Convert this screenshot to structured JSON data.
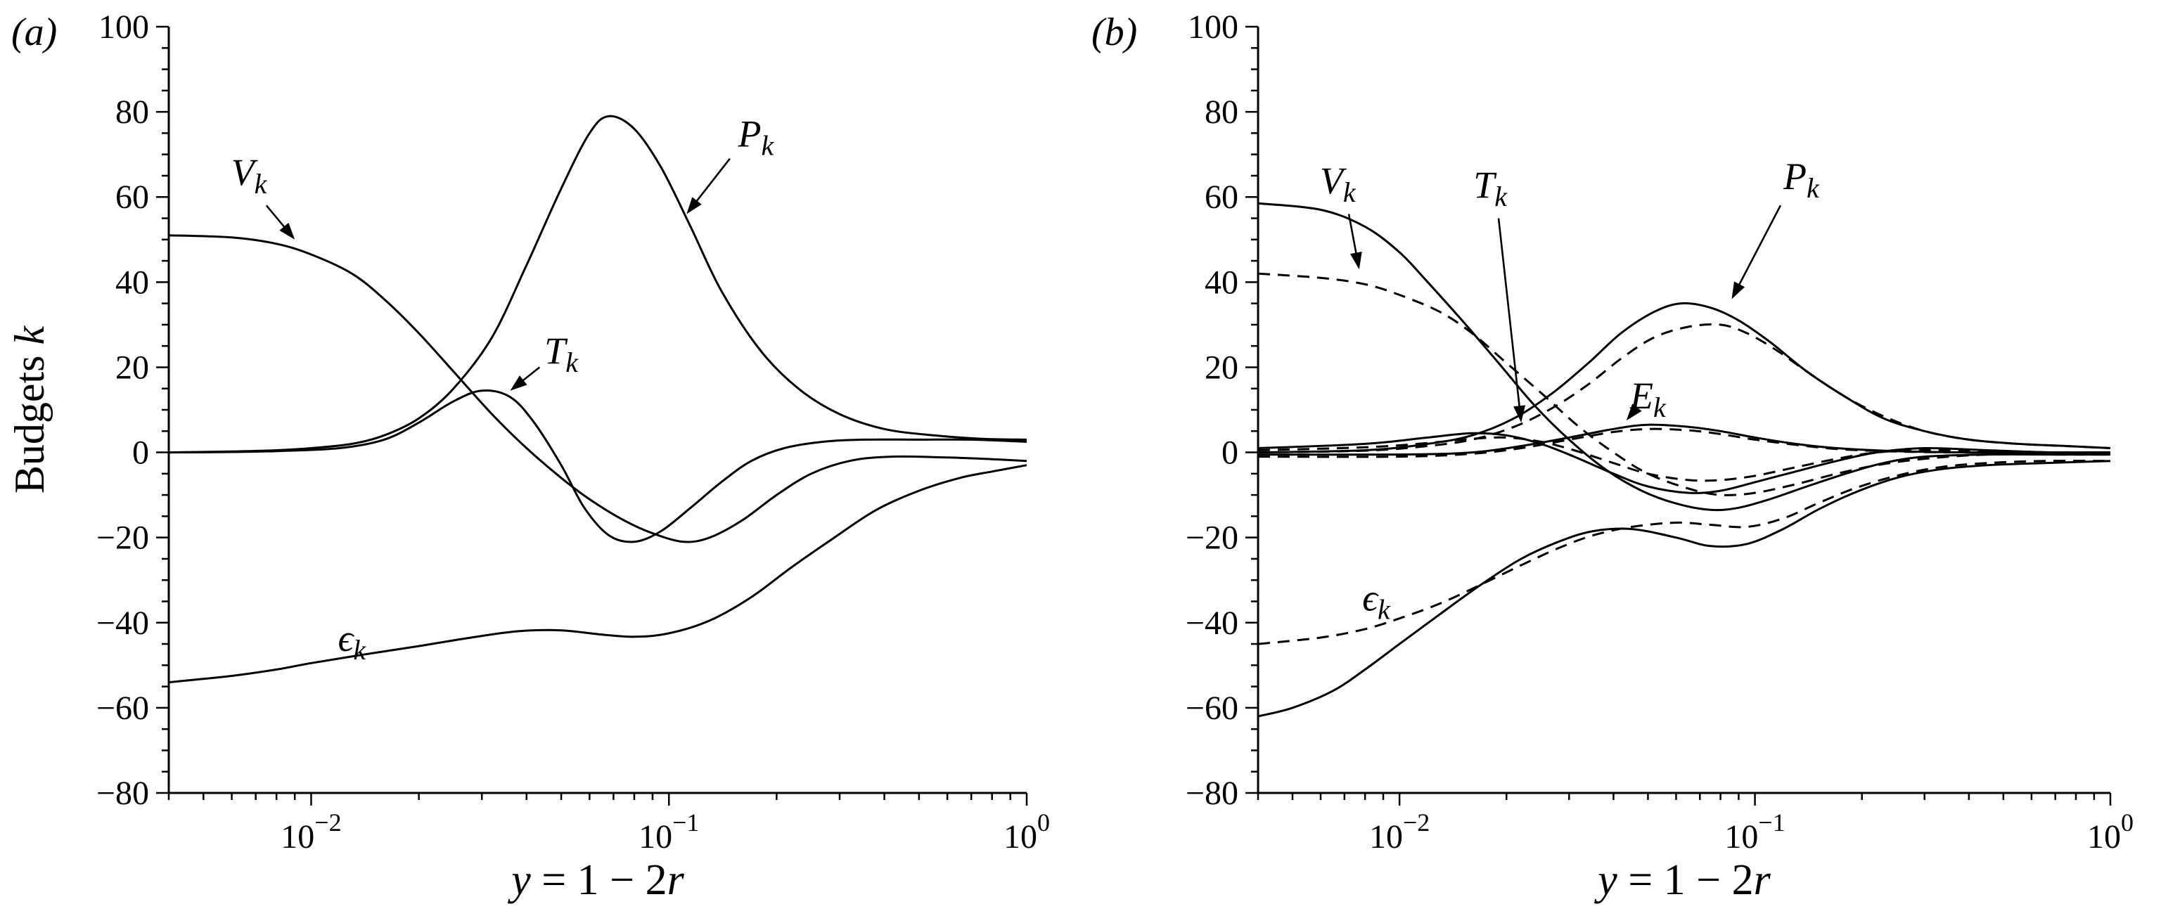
{
  "chart_data": [
    {
      "type": "line",
      "panel_tag": "(a)",
      "xscale": "log",
      "xlim": [
        0.004,
        1
      ],
      "ylim": [
        -80,
        100
      ],
      "grid": false,
      "legend": "none",
      "xlabel": "y = 1 − 2r",
      "ylabel": "Budgets k",
      "xlabel_segments": [
        {
          "t": "y",
          "i": 1
        },
        {
          "t": " = 1 − 2",
          "i": 0
        },
        {
          "t": "r",
          "i": 1
        }
      ],
      "ylabel_segments": [
        {
          "t": "Budgets ",
          "i": 0
        },
        {
          "t": "k",
          "i": 1
        }
      ],
      "x_ticks": [
        {
          "value": 0.01,
          "mantissa": "10",
          "exp": "−2"
        },
        {
          "value": 0.1,
          "mantissa": "10",
          "exp": "−1"
        },
        {
          "value": 1,
          "mantissa": "10",
          "exp": "0"
        }
      ],
      "y_tick_major_step": 20,
      "y_tick_minor_step": 5,
      "series": [
        {
          "name": "Pk",
          "style": "solid",
          "x": [
            0.004,
            0.006,
            0.008,
            0.01,
            0.013,
            0.016,
            0.02,
            0.025,
            0.032,
            0.04,
            0.05,
            0.06,
            0.068,
            0.08,
            0.095,
            0.115,
            0.14,
            0.18,
            0.23,
            0.3,
            0.4,
            0.55,
            0.75,
            1.0
          ],
          "y": [
            0,
            0.2,
            0.5,
            1,
            2,
            4,
            8,
            15,
            27,
            44,
            62,
            75,
            79,
            76,
            67,
            53,
            38,
            24,
            15,
            9,
            5.5,
            4,
            3.2,
            3
          ]
        },
        {
          "name": "Vk",
          "style": "solid",
          "x": [
            0.004,
            0.006,
            0.008,
            0.01,
            0.013,
            0.016,
            0.02,
            0.025,
            0.032,
            0.04,
            0.05,
            0.06,
            0.075,
            0.09,
            0.11,
            0.13,
            0.16,
            0.2,
            0.25,
            0.32,
            0.42,
            0.6,
            0.8,
            1.0
          ],
          "y": [
            51,
            50.5,
            49,
            46.5,
            42,
            36,
            28,
            19,
            9,
            1,
            -6,
            -11,
            -16,
            -19,
            -21,
            -20,
            -16,
            -10,
            -5,
            -2,
            -1,
            -1.2,
            -1.6,
            -2
          ]
        },
        {
          "name": "Tk",
          "style": "solid",
          "x": [
            0.004,
            0.006,
            0.008,
            0.012,
            0.016,
            0.02,
            0.025,
            0.03,
            0.036,
            0.042,
            0.05,
            0.058,
            0.068,
            0.08,
            0.095,
            0.115,
            0.14,
            0.17,
            0.21,
            0.27,
            0.35,
            0.5,
            0.7,
            1.0
          ],
          "y": [
            0,
            0.1,
            0.3,
            1,
            3,
            7,
            12,
            14.5,
            13,
            7,
            -3,
            -13,
            -19.5,
            -21,
            -18.5,
            -13,
            -7,
            -2,
            1,
            2.5,
            3,
            3,
            3,
            2.5
          ]
        },
        {
          "name": "eps_k",
          "style": "solid",
          "x": [
            0.004,
            0.006,
            0.008,
            0.01,
            0.014,
            0.02,
            0.028,
            0.038,
            0.05,
            0.065,
            0.08,
            0.1,
            0.13,
            0.17,
            0.22,
            0.29,
            0.38,
            0.5,
            0.65,
            0.8,
            1.0
          ],
          "y": [
            -54,
            -52.5,
            -51,
            -49.5,
            -47.5,
            -45.5,
            -43.5,
            -42,
            -41.8,
            -42.8,
            -43.3,
            -42.5,
            -39.5,
            -34,
            -27,
            -20,
            -13.5,
            -9,
            -6,
            -4.5,
            -3
          ]
        }
      ],
      "annotations": [
        {
          "main": "V",
          "sub": "k",
          "x": 0.0067,
          "y": 66,
          "arrow": {
            "x1": 0.0075,
            "y1": 58,
            "x2": 0.009,
            "y2": 50
          }
        },
        {
          "main": "P",
          "sub": "k",
          "x": 0.175,
          "y": 75,
          "arrow": {
            "x1": 0.148,
            "y1": 69,
            "x2": 0.112,
            "y2": 56
          }
        },
        {
          "main": "T",
          "sub": "k",
          "x": 0.05,
          "y": 24,
          "arrow": {
            "x1": 0.0435,
            "y1": 20,
            "x2": 0.036,
            "y2": 14.5
          }
        },
        {
          "main": "ϵ",
          "sub": "k",
          "x": 0.013,
          "y": -43.5
        }
      ]
    },
    {
      "type": "line",
      "panel_tag": "(b)",
      "xscale": "log",
      "xlim": [
        0.004,
        1
      ],
      "ylim": [
        -80,
        100
      ],
      "grid": false,
      "legend": "none",
      "xlabel": "y = 1 − 2r",
      "ylabel": "",
      "xlabel_segments": [
        {
          "t": "y",
          "i": 1
        },
        {
          "t": " = 1 − 2",
          "i": 0
        },
        {
          "t": "r",
          "i": 1
        }
      ],
      "x_ticks": [
        {
          "value": 0.01,
          "mantissa": "10",
          "exp": "−2"
        },
        {
          "value": 0.1,
          "mantissa": "10",
          "exp": "−1"
        },
        {
          "value": 1,
          "mantissa": "10",
          "exp": "0"
        }
      ],
      "y_tick_major_step": 20,
      "y_tick_minor_step": 5,
      "series": [
        {
          "name": "Pk_solid",
          "style": "solid",
          "x": [
            0.004,
            0.008,
            0.012,
            0.016,
            0.021,
            0.027,
            0.034,
            0.042,
            0.052,
            0.062,
            0.075,
            0.09,
            0.11,
            0.14,
            0.18,
            0.23,
            0.3,
            0.4,
            0.55,
            0.75,
            1.0
          ],
          "y": [
            0,
            0.5,
            2,
            4,
            8,
            14,
            21,
            28,
            33,
            35,
            34,
            31,
            26,
            19,
            13,
            8,
            5,
            3,
            2,
            1.5,
            1
          ]
        },
        {
          "name": "Pk_dashed",
          "style": "dashed",
          "x": [
            0.004,
            0.008,
            0.012,
            0.016,
            0.021,
            0.027,
            0.034,
            0.042,
            0.052,
            0.065,
            0.08,
            0.095,
            0.115,
            0.14,
            0.18,
            0.23,
            0.3,
            0.4,
            0.55,
            0.75,
            1.0
          ],
          "y": [
            0,
            0.4,
            1.5,
            3,
            6,
            10.5,
            16,
            22,
            27,
            29.5,
            30,
            28,
            24,
            19,
            13,
            8.5,
            5,
            3,
            2,
            1.5,
            1
          ]
        },
        {
          "name": "Vk_solid",
          "style": "solid",
          "x": [
            0.004,
            0.006,
            0.008,
            0.01,
            0.012,
            0.015,
            0.019,
            0.024,
            0.03,
            0.038,
            0.048,
            0.06,
            0.075,
            0.09,
            0.11,
            0.14,
            0.18,
            0.23,
            0.3,
            0.45,
            0.7,
            1.0
          ],
          "y": [
            58.5,
            57,
            53,
            47,
            40,
            31,
            21,
            11,
            3,
            -4,
            -9,
            -12,
            -13.5,
            -13,
            -11,
            -8,
            -5,
            -2.5,
            -1,
            -0.5,
            -0.5,
            -0.5
          ]
        },
        {
          "name": "Vk_dashed",
          "style": "dashed",
          "x": [
            0.004,
            0.006,
            0.008,
            0.01,
            0.013,
            0.016,
            0.02,
            0.025,
            0.032,
            0.04,
            0.05,
            0.065,
            0.08,
            0.1,
            0.13,
            0.17,
            0.22,
            0.3,
            0.45,
            0.7,
            1.0
          ],
          "y": [
            42,
            41,
            39.5,
            37,
            33,
            28,
            21,
            14,
            6,
            0,
            -5,
            -8.5,
            -10,
            -9.5,
            -7.5,
            -5,
            -3,
            -1.5,
            -0.5,
            -0.5,
            -0.5
          ]
        },
        {
          "name": "Tk_solid",
          "style": "solid",
          "x": [
            0.004,
            0.008,
            0.012,
            0.016,
            0.02,
            0.025,
            0.031,
            0.04,
            0.05,
            0.065,
            0.08,
            0.1,
            0.13,
            0.17,
            0.22,
            0.3,
            0.45,
            0.7,
            1.0
          ],
          "y": [
            1,
            2,
            3.5,
            4.5,
            4,
            2,
            -1,
            -5,
            -8,
            -9.5,
            -9,
            -7,
            -4.5,
            -2,
            0,
            1,
            0.5,
            0,
            0
          ]
        },
        {
          "name": "Tk_dashed",
          "style": "dashed",
          "x": [
            0.004,
            0.008,
            0.012,
            0.016,
            0.02,
            0.025,
            0.031,
            0.04,
            0.05,
            0.065,
            0.08,
            0.1,
            0.13,
            0.17,
            0.22,
            0.3,
            0.45,
            0.7,
            1.0
          ],
          "y": [
            0.5,
            1.2,
            2.2,
            3.2,
            3.5,
            2.5,
            0.5,
            -2.5,
            -5,
            -6.5,
            -6.5,
            -5.5,
            -3.5,
            -1.5,
            0,
            0.5,
            0.3,
            0,
            0
          ]
        },
        {
          "name": "Ek_solid",
          "style": "solid",
          "x": [
            0.004,
            0.01,
            0.016,
            0.022,
            0.03,
            0.04,
            0.05,
            0.065,
            0.08,
            0.1,
            0.13,
            0.17,
            0.25,
            0.4,
            0.7,
            1.0
          ],
          "y": [
            -0.5,
            -0.5,
            0,
            1.5,
            3.5,
            5.5,
            6.5,
            6,
            5,
            3.5,
            2,
            1,
            0.3,
            0,
            0,
            0
          ]
        },
        {
          "name": "Ek_dashed",
          "style": "dashed",
          "x": [
            0.004,
            0.01,
            0.016,
            0.022,
            0.03,
            0.04,
            0.05,
            0.065,
            0.08,
            0.1,
            0.13,
            0.17,
            0.25,
            0.4,
            0.7,
            1.0
          ],
          "y": [
            -1,
            -1,
            -0.3,
            1,
            3,
            4.8,
            5.5,
            5.2,
            4.3,
            3,
            1.8,
            0.8,
            0.2,
            0,
            0,
            0
          ]
        },
        {
          "name": "eps_k_solid",
          "style": "solid",
          "x": [
            0.004,
            0.005,
            0.0065,
            0.008,
            0.01,
            0.013,
            0.017,
            0.022,
            0.028,
            0.035,
            0.045,
            0.06,
            0.075,
            0.095,
            0.12,
            0.15,
            0.19,
            0.25,
            0.33,
            0.45,
            0.65,
            1.0
          ],
          "y": [
            -62,
            -60,
            -56,
            -51,
            -45,
            -38,
            -31,
            -25,
            -21,
            -18.5,
            -18,
            -20,
            -22,
            -21.5,
            -18,
            -13.5,
            -9.5,
            -6,
            -4,
            -3,
            -2.5,
            -2
          ]
        },
        {
          "name": "eps_k_dashed",
          "style": "dashed",
          "x": [
            0.004,
            0.006,
            0.008,
            0.01,
            0.013,
            0.017,
            0.022,
            0.028,
            0.035,
            0.045,
            0.06,
            0.075,
            0.095,
            0.12,
            0.15,
            0.19,
            0.25,
            0.33,
            0.45,
            0.65,
            1.0
          ],
          "y": [
            -45,
            -43.5,
            -41.5,
            -39,
            -35.5,
            -31,
            -26.5,
            -22.5,
            -19.5,
            -17.5,
            -16.5,
            -17,
            -17.5,
            -15.5,
            -12,
            -8.5,
            -5.5,
            -3.5,
            -2.5,
            -2,
            -2
          ]
        }
      ],
      "annotations": [
        {
          "main": "V",
          "sub": "k",
          "x": 0.0067,
          "y": 64,
          "arrow": {
            "x1": 0.0072,
            "y1": 56,
            "x2": 0.0077,
            "y2": 43
          }
        },
        {
          "main": "T",
          "sub": "k",
          "x": 0.018,
          "y": 63,
          "arrow": {
            "x1": 0.019,
            "y1": 55,
            "x2": 0.022,
            "y2": 7
          }
        },
        {
          "main": "P",
          "sub": "k",
          "x": 0.135,
          "y": 65,
          "arrow": {
            "x1": 0.118,
            "y1": 58,
            "x2": 0.086,
            "y2": 36
          }
        },
        {
          "main": "E",
          "sub": "k",
          "x": 0.05,
          "y": 13.5,
          "arrow": {
            "x1": 0.0465,
            "y1": 10.5,
            "x2": 0.0435,
            "y2": 7.5
          }
        },
        {
          "main": "ϵ",
          "sub": "k",
          "x": 0.0086,
          "y": -34
        }
      ]
    }
  ]
}
